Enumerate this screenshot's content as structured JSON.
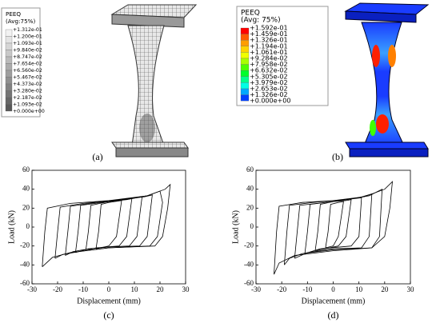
{
  "fe_results": [
    {
      "caption": "(a)",
      "legend": {
        "title": "PEEQ",
        "subtitle": "(Avg:75%)",
        "labels": [
          "+1.312e-01",
          "+1.200e-01",
          "+1.093e-01",
          "+9.840e-02",
          "+8.747e-02",
          "+7.654e-02",
          "+6.560e-02",
          "+5.467e-02",
          "+4.373e-02",
          "+3.280e-02",
          "+2.187e-02",
          "+1.093e-02",
          "+0.000e+00"
        ],
        "colors": [
          "#f2f2f2",
          "#e4e4e4",
          "#d6d6d6",
          "#c8c8c8",
          "#bababa",
          "#acacac",
          "#9e9e9e",
          "#909090",
          "#828282",
          "#747474",
          "#666666",
          "#585858"
        ]
      }
    },
    {
      "caption": "(b)",
      "legend": {
        "title": "PEEQ",
        "subtitle": "(Avg: 75%)",
        "labels": [
          "+1.592e-01",
          "+1.459e-01",
          "+1.326e-01",
          "+1.194e-01",
          "+1.061e-01",
          "+9.284e-02",
          "+7.958e-02",
          "+6.632e-02",
          "+5.305e-02",
          "+3.979e-02",
          "+2.653e-02",
          "+1.326e-02",
          "+0.000e+00"
        ],
        "colors": [
          "#ff0000",
          "#ff5a00",
          "#ff9d00",
          "#ffd300",
          "#f0ff00",
          "#a8ff00",
          "#4cff00",
          "#00ff2a",
          "#00ff8c",
          "#00ffe5",
          "#00a8ff",
          "#0040ff"
        ]
      }
    }
  ],
  "chart_data": [
    {
      "type": "line",
      "caption": "(c)",
      "x_label": "Displacement (mm)",
      "y_label": "Load (kN)",
      "color": "#000000",
      "xlim": [
        -30,
        30
      ],
      "ylim": [
        -60,
        60
      ],
      "xticks": [
        -30,
        -20,
        -10,
        0,
        10,
        20,
        30
      ],
      "yticks": [
        -60,
        -40,
        -20,
        0,
        20,
        40,
        60
      ],
      "series": [
        {
          "x": [
            -26,
            -25,
            -24,
            -15,
            0,
            15,
            22,
            24,
            23,
            21,
            18,
            0,
            -15,
            -22,
            -26
          ],
          "values": [
            -42,
            -5,
            20,
            25,
            28,
            33,
            40,
            45,
            20,
            -10,
            -20,
            -22,
            -27,
            -32,
            -42
          ]
        },
        {
          "x": [
            -21,
            -20,
            -19,
            -10,
            5,
            15,
            20,
            21,
            19,
            16,
            0,
            -12,
            -18,
            -21
          ],
          "values": [
            -33,
            -5,
            21,
            25,
            29,
            33,
            38,
            26,
            -10,
            -20,
            -22,
            -26,
            -29,
            -33
          ]
        },
        {
          "x": [
            -17,
            -16,
            -15,
            -5,
            8,
            14,
            17,
            15,
            12,
            0,
            -10,
            -14,
            -17
          ],
          "values": [
            -30,
            -5,
            22,
            26,
            30,
            32,
            34,
            -10,
            -20,
            -21,
            -24,
            -26,
            -30
          ]
        },
        {
          "x": [
            -13,
            -12,
            -11,
            0,
            9,
            13,
            11,
            8,
            0,
            -8,
            -13
          ],
          "values": [
            -27,
            -5,
            23,
            27,
            30,
            32,
            -10,
            -20,
            -21,
            -23,
            -27
          ]
        },
        {
          "x": [
            -9,
            -8,
            -7,
            0,
            7,
            9,
            7,
            4,
            -5,
            -9
          ],
          "values": [
            -25,
            -5,
            23,
            27,
            29,
            30,
            -10,
            -20,
            -22,
            -25
          ]
        },
        {
          "x": [
            -5,
            -4,
            -3,
            0,
            5,
            3,
            0,
            -5
          ],
          "values": [
            -23,
            -5,
            24,
            26,
            28,
            -10,
            -20,
            -23
          ]
        }
      ]
    },
    {
      "type": "line",
      "caption": "(d)",
      "x_label": "Displacement (mm)",
      "y_label": "Load (kN)",
      "color": "#000000",
      "xlim": [
        -30,
        30
      ],
      "ylim": [
        -60,
        60
      ],
      "xticks": [
        -30,
        -20,
        -10,
        0,
        10,
        20,
        30
      ],
      "yticks": [
        -60,
        -40,
        -20,
        0,
        20,
        40,
        60
      ],
      "series": [
        {
          "x": [
            -23,
            -22,
            -21,
            -12,
            0,
            12,
            20,
            23,
            22,
            20,
            15,
            0,
            -15,
            -21,
            -23
          ],
          "values": [
            -50,
            -5,
            22,
            26,
            28,
            32,
            40,
            48,
            20,
            -10,
            -22,
            -25,
            -30,
            -38,
            -50
          ]
        },
        {
          "x": [
            -19,
            -18,
            -17,
            -8,
            5,
            14,
            19,
            18,
            15,
            0,
            -12,
            -17,
            -19
          ],
          "values": [
            -40,
            -5,
            23,
            26,
            29,
            33,
            40,
            -10,
            -22,
            -24,
            -28,
            -33,
            -40
          ]
        },
        {
          "x": [
            -15,
            -14,
            -13,
            0,
            10,
            15,
            14,
            11,
            0,
            -10,
            -15
          ],
          "values": [
            -33,
            -5,
            23,
            27,
            31,
            35,
            -10,
            -22,
            -23,
            -27,
            -33
          ]
        },
        {
          "x": [
            -11,
            -10,
            -9,
            0,
            8,
            11,
            10,
            7,
            -5,
            -11
          ],
          "values": [
            -28,
            -5,
            24,
            27,
            30,
            31,
            -10,
            -20,
            -23,
            -28
          ]
        },
        {
          "x": [
            -7,
            -6,
            -5,
            0,
            5,
            7,
            5,
            2,
            -7
          ],
          "values": [
            -25,
            -5,
            24,
            27,
            28,
            29,
            -10,
            -20,
            -25
          ]
        },
        {
          "x": [
            -3,
            -2,
            -1,
            2,
            4,
            2,
            0,
            -3
          ],
          "values": [
            -22,
            -5,
            24,
            26,
            27,
            -10,
            -20,
            -22
          ]
        }
      ]
    }
  ]
}
